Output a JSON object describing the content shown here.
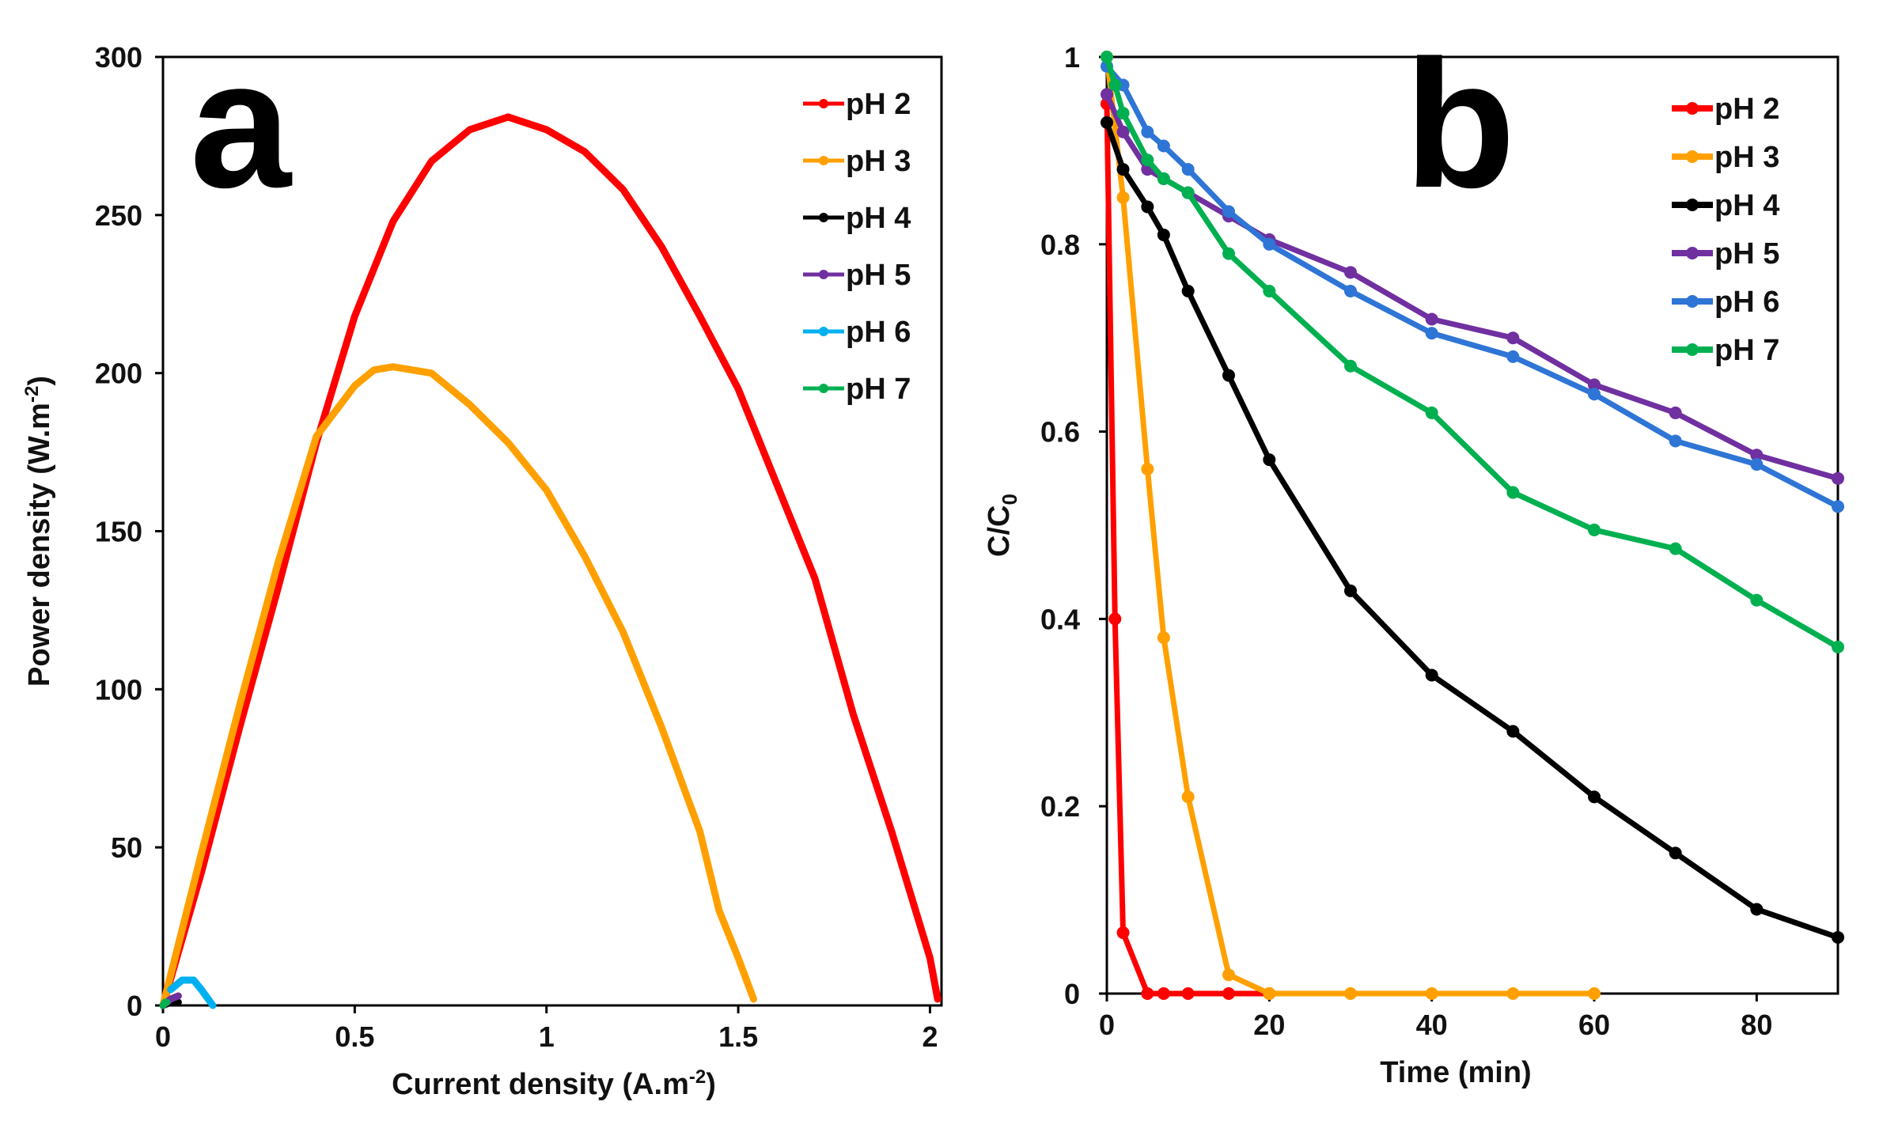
{
  "chart_data": [
    {
      "type": "line",
      "panel_label": "a",
      "xlabel": "Current density (A.m",
      "xlabel_sup": "-2",
      "xlabel_end": ")",
      "ylabel": "Power density (W.m",
      "ylabel_sup": "-2",
      "ylabel_end": ")",
      "xlim": [
        0,
        2.03
      ],
      "ylim": [
        0,
        300
      ],
      "xticks": [
        0,
        0.5,
        1,
        1.5,
        2
      ],
      "xtick_labels": [
        "0",
        "0.5",
        "1",
        "1.5",
        "2"
      ],
      "yticks": [
        0,
        50,
        100,
        150,
        200,
        250,
        300
      ],
      "ytick_labels": [
        "0",
        "50",
        "100",
        "150",
        "200",
        "250",
        "300"
      ],
      "legend_position": "top-right",
      "series": [
        {
          "name": "pH 2",
          "color": "#ff0000",
          "points": [
            [
              0,
              0
            ],
            [
              0.1,
              42
            ],
            [
              0.2,
              88
            ],
            [
              0.3,
              132
            ],
            [
              0.4,
              178
            ],
            [
              0.5,
              218
            ],
            [
              0.6,
              248
            ],
            [
              0.7,
              267
            ],
            [
              0.8,
              277
            ],
            [
              0.9,
              281
            ],
            [
              1.0,
              277
            ],
            [
              1.1,
              270
            ],
            [
              1.2,
              258
            ],
            [
              1.3,
              240
            ],
            [
              1.4,
              218
            ],
            [
              1.5,
              195
            ],
            [
              1.6,
              165
            ],
            [
              1.7,
              135
            ],
            [
              1.8,
              92
            ],
            [
              1.9,
              55
            ],
            [
              1.95,
              35
            ],
            [
              2.0,
              15
            ],
            [
              2.02,
              2
            ]
          ]
        },
        {
          "name": "pH 3",
          "color": "#ffa000",
          "points": [
            [
              0,
              0
            ],
            [
              0.1,
              48
            ],
            [
              0.2,
              95
            ],
            [
              0.3,
              140
            ],
            [
              0.4,
              180
            ],
            [
              0.5,
              196
            ],
            [
              0.55,
              201
            ],
            [
              0.6,
              202
            ],
            [
              0.7,
              200
            ],
            [
              0.8,
              190
            ],
            [
              0.9,
              178
            ],
            [
              1.0,
              163
            ],
            [
              1.1,
              142
            ],
            [
              1.2,
              118
            ],
            [
              1.3,
              88
            ],
            [
              1.4,
              55
            ],
            [
              1.45,
              30
            ],
            [
              1.5,
              15
            ],
            [
              1.54,
              2
            ]
          ]
        },
        {
          "name": "pH 4",
          "color": "#000000",
          "points": [
            [
              0,
              0
            ],
            [
              0.02,
              1
            ],
            [
              0.04,
              1
            ]
          ]
        },
        {
          "name": "pH 5",
          "color": "#7030a0",
          "points": [
            [
              0,
              0
            ],
            [
              0.02,
              2
            ],
            [
              0.04,
              3
            ]
          ]
        },
        {
          "name": "pH 6",
          "color": "#00b0f0",
          "points": [
            [
              0.02,
              5
            ],
            [
              0.05,
              8
            ],
            [
              0.08,
              8
            ],
            [
              0.1,
              5
            ],
            [
              0.13,
              0
            ]
          ]
        },
        {
          "name": "pH 7",
          "color": "#00b050",
          "points": [
            [
              0,
              0
            ],
            [
              0.005,
              1
            ],
            [
              0.01,
              1
            ]
          ]
        }
      ]
    },
    {
      "type": "line",
      "panel_label": "b",
      "xlabel": "Time (min)",
      "ylabel": "C/C",
      "ylabel_sub": "0",
      "xlim": [
        0,
        90
      ],
      "ylim": [
        0,
        1
      ],
      "xticks": [
        0,
        20,
        40,
        60,
        80
      ],
      "xtick_labels": [
        "0",
        "20",
        "40",
        "60",
        "80"
      ],
      "yticks": [
        0,
        0.2,
        0.4,
        0.6,
        0.8,
        1
      ],
      "ytick_labels": [
        "0",
        "0.2",
        "0.4",
        "0.6",
        "0.8",
        "1"
      ],
      "legend_position": "top-right",
      "series": [
        {
          "name": "pH 2",
          "color": "#ff0000",
          "points": [
            [
              0,
              0.95
            ],
            [
              1,
              0.4
            ],
            [
              2,
              0.065
            ],
            [
              5,
              0
            ],
            [
              7,
              0
            ],
            [
              10,
              0
            ],
            [
              15,
              0
            ],
            [
              20,
              0
            ]
          ]
        },
        {
          "name": "pH 3",
          "color": "#ffa000",
          "points": [
            [
              0,
              1
            ],
            [
              2,
              0.85
            ],
            [
              5,
              0.56
            ],
            [
              7,
              0.38
            ],
            [
              10,
              0.21
            ],
            [
              15,
              0.02
            ],
            [
              20,
              0
            ],
            [
              30,
              0
            ],
            [
              40,
              0
            ],
            [
              50,
              0
            ],
            [
              60,
              0
            ]
          ]
        },
        {
          "name": "pH 4",
          "color": "#000000",
          "points": [
            [
              0,
              0.93
            ],
            [
              2,
              0.88
            ],
            [
              5,
              0.84
            ],
            [
              7,
              0.81
            ],
            [
              10,
              0.75
            ],
            [
              15,
              0.66
            ],
            [
              20,
              0.57
            ],
            [
              30,
              0.43
            ],
            [
              40,
              0.34
            ],
            [
              50,
              0.28
            ],
            [
              60,
              0.21
            ],
            [
              70,
              0.15
            ],
            [
              80,
              0.09
            ],
            [
              90,
              0.06
            ]
          ]
        },
        {
          "name": "pH 5",
          "color": "#7030a0",
          "points": [
            [
              0,
              0.96
            ],
            [
              2,
              0.92
            ],
            [
              5,
              0.88
            ],
            [
              7,
              0.87
            ],
            [
              10,
              0.855
            ],
            [
              15,
              0.83
            ],
            [
              20,
              0.805
            ],
            [
              30,
              0.77
            ],
            [
              40,
              0.72
            ],
            [
              50,
              0.7
            ],
            [
              60,
              0.65
            ],
            [
              70,
              0.62
            ],
            [
              80,
              0.575
            ],
            [
              90,
              0.55
            ]
          ]
        },
        {
          "name": "pH 6",
          "color": "#2e75d6",
          "points": [
            [
              0,
              0.99
            ],
            [
              2,
              0.97
            ],
            [
              5,
              0.92
            ],
            [
              7,
              0.905
            ],
            [
              10,
              0.88
            ],
            [
              15,
              0.835
            ],
            [
              20,
              0.8
            ],
            [
              30,
              0.75
            ],
            [
              40,
              0.705
            ],
            [
              50,
              0.68
            ],
            [
              60,
              0.64
            ],
            [
              70,
              0.59
            ],
            [
              80,
              0.565
            ],
            [
              90,
              0.52
            ]
          ]
        },
        {
          "name": "pH 7",
          "color": "#00b050",
          "points": [
            [
              0,
              1
            ],
            [
              1,
              0.97
            ],
            [
              2,
              0.94
            ],
            [
              5,
              0.89
            ],
            [
              7,
              0.87
            ],
            [
              10,
              0.855
            ],
            [
              15,
              0.79
            ],
            [
              20,
              0.75
            ],
            [
              30,
              0.67
            ],
            [
              40,
              0.62
            ],
            [
              50,
              0.535
            ],
            [
              60,
              0.495
            ],
            [
              70,
              0.475
            ],
            [
              80,
              0.42
            ],
            [
              90,
              0.37
            ]
          ]
        }
      ]
    }
  ]
}
